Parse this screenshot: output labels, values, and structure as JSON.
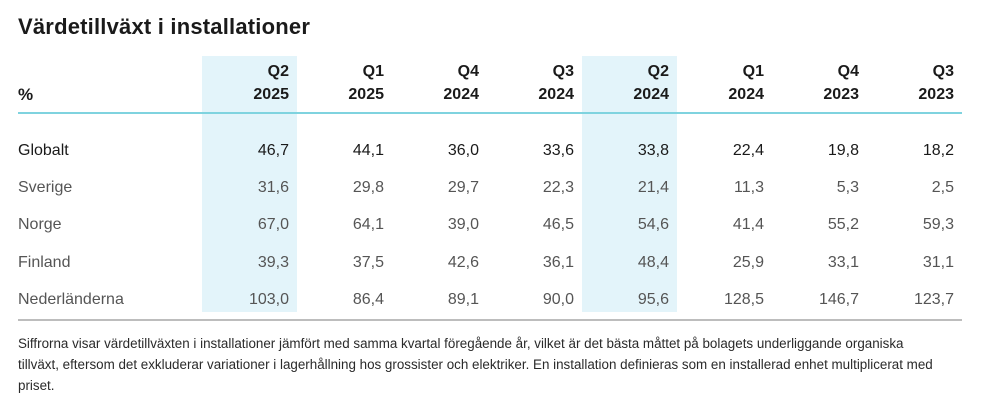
{
  "title": "Värdetillväxt i installationer",
  "table": {
    "unit_label": "%",
    "columns": [
      {
        "quarter": "Q2",
        "year": "2025"
      },
      {
        "quarter": "Q1",
        "year": "2025"
      },
      {
        "quarter": "Q4",
        "year": "2024"
      },
      {
        "quarter": "Q3",
        "year": "2024"
      },
      {
        "quarter": "Q2",
        "year": "2024"
      },
      {
        "quarter": "Q1",
        "year": "2024"
      },
      {
        "quarter": "Q4",
        "year": "2023"
      },
      {
        "quarter": "Q3",
        "year": "2023"
      }
    ],
    "rows": [
      {
        "label": "Globalt",
        "values": [
          "46,7",
          "44,1",
          "36,0",
          "33,6",
          "33,8",
          "22,4",
          "19,8",
          "18,2"
        ]
      },
      {
        "label": "Sverige",
        "values": [
          "31,6",
          "29,8",
          "29,7",
          "22,3",
          "21,4",
          "11,3",
          "5,3",
          "2,5"
        ]
      },
      {
        "label": "Norge",
        "values": [
          "67,0",
          "64,1",
          "39,0",
          "46,5",
          "54,6",
          "41,4",
          "55,2",
          "59,3"
        ]
      },
      {
        "label": "Finland",
        "values": [
          "39,3",
          "37,5",
          "42,6",
          "36,1",
          "48,4",
          "25,9",
          "33,1",
          "31,1"
        ]
      },
      {
        "label": "Nederländerna",
        "values": [
          "103,0",
          "86,4",
          "89,1",
          "90,0",
          "95,6",
          "128,5",
          "146,7",
          "123,7"
        ]
      }
    ]
  },
  "footnote": "Siffrorna visar värdetillväxten i installationer jämfört med samma kvartal föregående år, vilket är det bästa måttet på bolagets underliggande organiska tillväxt, eftersom det exkluderar variationer i lagerhållning hos grossister och elektriker. En installation definieras som en installerad enhet multiplicerat med priset.",
  "colors": {
    "highlight": "#e3f4fa",
    "header_rule": "#7fd3df",
    "footer_rule": "#bdbdbd"
  }
}
